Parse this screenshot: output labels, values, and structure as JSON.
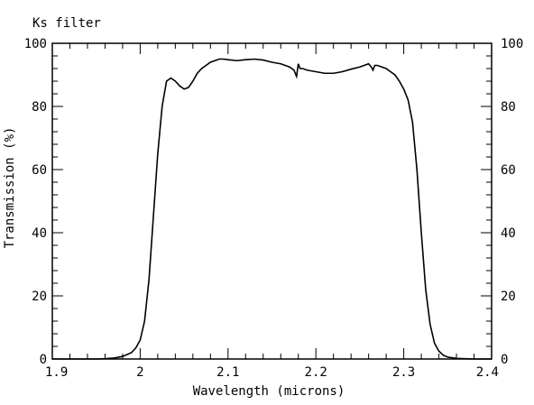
{
  "chart_data": {
    "type": "line",
    "title": "Ks filter",
    "xlabel": "Wavelength (microns)",
    "ylabel": "Transmission (%)",
    "xlim": [
      1.9,
      2.4
    ],
    "ylim": [
      0,
      100
    ],
    "x_ticks": [
      "1.9",
      "2",
      "2.1",
      "2.2",
      "2.3",
      "2.4"
    ],
    "y_ticks": [
      "0",
      "20",
      "40",
      "60",
      "80",
      "100"
    ],
    "y_ticks_right": [
      "0",
      "20",
      "40",
      "60",
      "80",
      "100"
    ],
    "grid": false,
    "legend": "none",
    "line_color": "#000000",
    "series": [
      {
        "x": [
          1.9,
          1.93,
          1.95,
          1.96,
          1.97,
          1.98,
          1.99,
          1.995,
          2.0,
          2.005,
          2.01,
          2.015,
          2.02,
          2.025,
          2.03,
          2.035,
          2.04,
          2.045,
          2.05,
          2.055,
          2.06,
          2.065,
          2.07,
          2.08,
          2.09,
          2.095,
          2.1,
          2.11,
          2.12,
          2.13,
          2.14,
          2.15,
          2.16,
          2.17,
          2.175,
          2.178,
          2.18,
          2.182,
          2.185,
          2.19,
          2.2,
          2.21,
          2.22,
          2.23,
          2.24,
          2.25,
          2.255,
          2.26,
          2.263,
          2.265,
          2.267,
          2.27,
          2.28,
          2.285,
          2.29,
          2.295,
          2.3,
          2.305,
          2.31,
          2.315,
          2.32,
          2.325,
          2.33,
          2.335,
          2.34,
          2.345,
          2.35,
          2.36,
          2.37,
          2.38,
          2.4
        ],
        "y": [
          0,
          0,
          0,
          0.1,
          0.3,
          0.8,
          2,
          3.5,
          6,
          12,
          25,
          45,
          65,
          80,
          88,
          89,
          88,
          86.5,
          85.5,
          86,
          88,
          90.5,
          92,
          94,
          95,
          95,
          94.8,
          94.5,
          94.8,
          95,
          94.7,
          94,
          93.5,
          92.5,
          91.5,
          89.5,
          93.5,
          92,
          92,
          91.5,
          91,
          90.5,
          90.5,
          91,
          91.8,
          92.5,
          93,
          93.5,
          92.5,
          91.5,
          93,
          93,
          92,
          91,
          90,
          88,
          85.5,
          82,
          75,
          60,
          40,
          22,
          11,
          5,
          2.5,
          1.2,
          0.6,
          0.2,
          0.1,
          0,
          0
        ]
      }
    ]
  }
}
